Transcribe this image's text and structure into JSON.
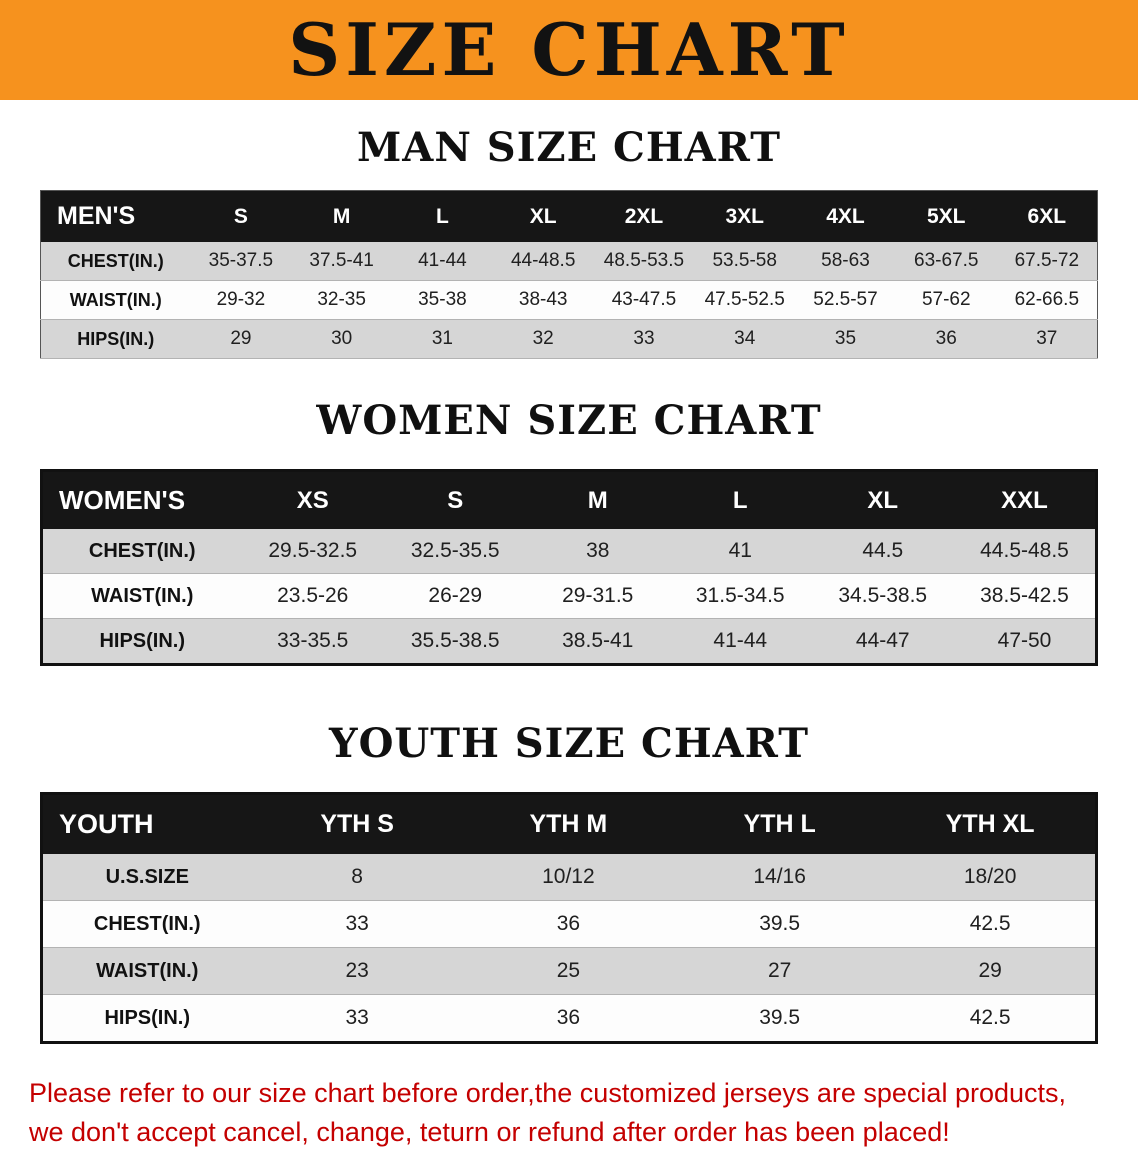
{
  "banner": {
    "title": "SIZE CHART"
  },
  "colors": {
    "banner_bg": "#F6921E",
    "table_header_bg": "#161616",
    "row_stripe": "#D6D6D6",
    "note_text": "#C40000"
  },
  "men": {
    "heading": "MAN SIZE CHART",
    "columns": [
      "MEN'S",
      "S",
      "M",
      "L",
      "XL",
      "2XL",
      "3XL",
      "4XL",
      "5XL",
      "6XL"
    ],
    "rows": [
      [
        "CHEST(IN.)",
        "35-37.5",
        "37.5-41",
        "41-44",
        "44-48.5",
        "48.5-53.5",
        "53.5-58",
        "58-63",
        "63-67.5",
        "67.5-72"
      ],
      [
        "WAIST(IN.)",
        "29-32",
        "32-35",
        "35-38",
        "38-43",
        "43-47.5",
        "47.5-52.5",
        "52.5-57",
        "57-62",
        "62-66.5"
      ],
      [
        "HIPS(IN.)",
        "29",
        "30",
        "31",
        "32",
        "33",
        "34",
        "35",
        "36",
        "37"
      ]
    ]
  },
  "women": {
    "heading": "WOMEN SIZE CHART",
    "columns": [
      "WOMEN'S",
      "XS",
      "S",
      "M",
      "L",
      "XL",
      "XXL"
    ],
    "rows": [
      [
        "CHEST(IN.)",
        "29.5-32.5",
        "32.5-35.5",
        "38",
        "41",
        "44.5",
        "44.5-48.5"
      ],
      [
        "WAIST(IN.)",
        "23.5-26",
        "26-29",
        "29-31.5",
        "31.5-34.5",
        "34.5-38.5",
        "38.5-42.5"
      ],
      [
        "HIPS(IN.)",
        "33-35.5",
        "35.5-38.5",
        "38.5-41",
        "41-44",
        "44-47",
        "47-50"
      ]
    ]
  },
  "youth": {
    "heading": "YOUTH SIZE CHART",
    "columns": [
      "YOUTH",
      "YTH S",
      "YTH M",
      "YTH L",
      "YTH XL"
    ],
    "rows": [
      [
        "U.S.SIZE",
        "8",
        "10/12",
        "14/16",
        "18/20"
      ],
      [
        "CHEST(IN.)",
        "33",
        "36",
        "39.5",
        "42.5"
      ],
      [
        "WAIST(IN.)",
        "23",
        "25",
        "27",
        "29"
      ],
      [
        "HIPS(IN.)",
        "33",
        "36",
        "39.5",
        "42.5"
      ]
    ]
  },
  "note": {
    "line1": "Please refer to our size chart before order,the customized jerseys are special products,",
    "line2": "we don't accept cancel, change, teturn or refund after order has been placed!"
  }
}
